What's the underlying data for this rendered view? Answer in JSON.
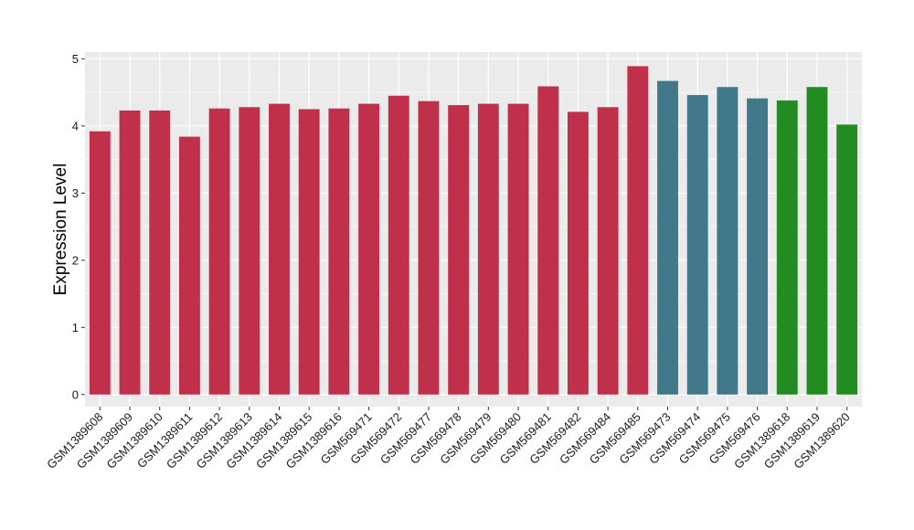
{
  "chart_data": {
    "type": "bar",
    "title": "",
    "xlabel": "",
    "ylabel": "Expression Level",
    "ylim": [
      -0.18,
      5.1
    ],
    "yticks": [
      0,
      1,
      2,
      3,
      4,
      5
    ],
    "grid": true,
    "legend": "none",
    "panel_background": "#ebebeb",
    "grid_color": "#ffffff",
    "categories": [
      "GSM1389608",
      "GSM1389609",
      "GSM1389610",
      "GSM1389611",
      "GSM1389612",
      "GSM1389613",
      "GSM1389614",
      "GSM1389615",
      "GSM1389616",
      "GSM569471",
      "GSM569472",
      "GSM569477",
      "GSM569478",
      "GSM569479",
      "GSM569480",
      "GSM569481",
      "GSM569482",
      "GSM569484",
      "GSM569485",
      "GSM569473",
      "GSM569474",
      "GSM569475",
      "GSM569476",
      "GSM1389618",
      "GSM1389619",
      "GSM1389620"
    ],
    "values": [
      3.92,
      4.23,
      4.23,
      3.84,
      4.26,
      4.28,
      4.33,
      4.25,
      4.26,
      4.33,
      4.45,
      4.37,
      4.31,
      4.33,
      4.33,
      4.59,
      4.21,
      4.28,
      4.89,
      4.67,
      4.46,
      4.58,
      4.41,
      4.38,
      4.58,
      4.02
    ],
    "colors": [
      "#c1304b",
      "#c1304b",
      "#c1304b",
      "#c1304b",
      "#c1304b",
      "#c1304b",
      "#c1304b",
      "#c1304b",
      "#c1304b",
      "#c1304b",
      "#c1304b",
      "#c1304b",
      "#c1304b",
      "#c1304b",
      "#c1304b",
      "#c1304b",
      "#c1304b",
      "#c1304b",
      "#c1304b",
      "#41788a",
      "#41788a",
      "#41788a",
      "#41788a",
      "#228b22",
      "#228b22",
      "#228b22"
    ]
  }
}
